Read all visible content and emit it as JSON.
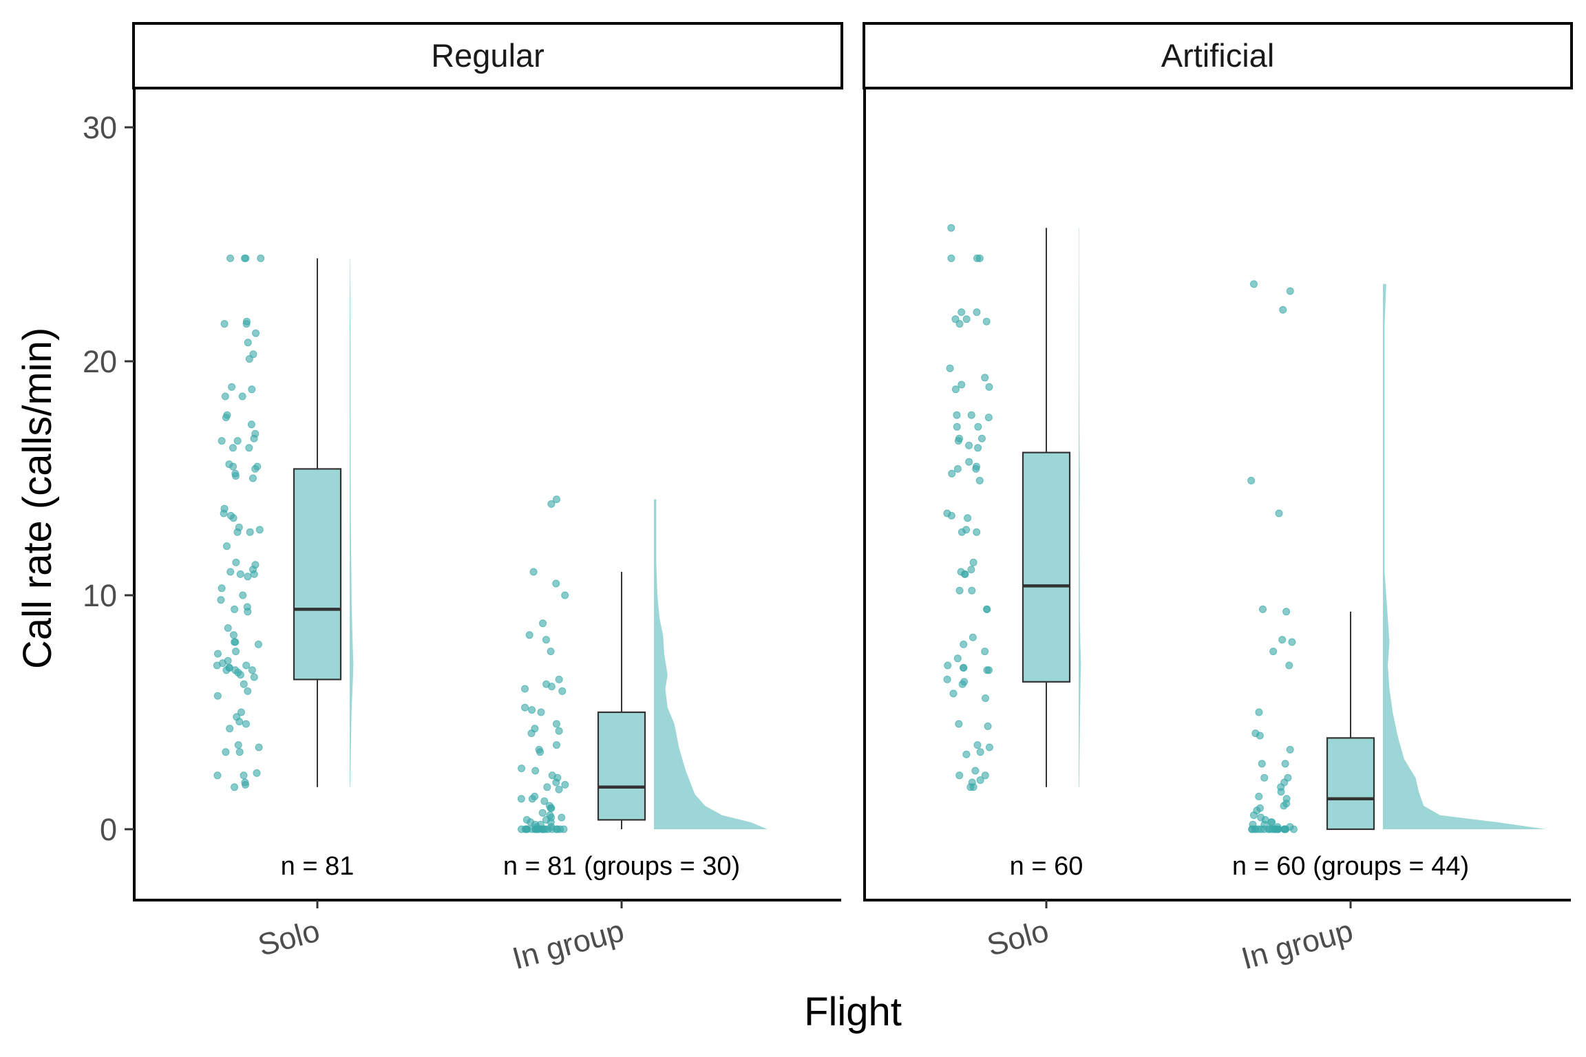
{
  "colors": {
    "fill": "#9dd6d6",
    "point": "#3aa9a9",
    "line": "#333333",
    "panel_border": "#000000"
  },
  "chart_data": {
    "type": "raincloud",
    "xlabel": "Flight",
    "ylabel": "Call rate (calls/min)",
    "ylim": [
      -3,
      31.5
    ],
    "yticks": [
      0,
      10,
      20,
      30
    ],
    "categories": [
      "Solo",
      "In group"
    ],
    "grid": false,
    "panels": [
      {
        "name": "Regular",
        "groups": [
          {
            "category": "Solo",
            "label": "n = 81",
            "box": {
              "min": 1.8,
              "q1": 6.4,
              "median": 9.4,
              "q3": 15.4,
              "max": 24.4
            },
            "density": [
              [
                1.8,
                0.03
              ],
              [
                3,
                0.06
              ],
              [
                5,
                0.11
              ],
              [
                6.5,
                0.2
              ],
              [
                7,
                0.22
              ],
              [
                8,
                0.18
              ],
              [
                9.5,
                0.12
              ],
              [
                11,
                0.1
              ],
              [
                13,
                0.07
              ],
              [
                15,
                0.06
              ],
              [
                16.5,
                0.06
              ],
              [
                18,
                0.05
              ],
              [
                19.5,
                0.05
              ],
              [
                21,
                0.05
              ],
              [
                22.5,
                0.04
              ],
              [
                24.4,
                0.02
              ]
            ],
            "points": [
              24.4,
              24.4,
              24.4,
              24.4,
              21.7,
              21.6,
              21.6,
              21.2,
              20.8,
              20.3,
              20.1,
              18.9,
              18.8,
              18.5,
              18.5,
              17.7,
              17.6,
              17.3,
              16.9,
              16.7,
              16.6,
              16.6,
              16.3,
              16.3,
              15.6,
              15.5,
              15.5,
              15.4,
              15.2,
              15.1,
              15,
              13.7,
              13.5,
              13.4,
              13.3,
              12.9,
              12.8,
              12.7,
              12.7,
              12.1,
              11.4,
              11.3,
              11.1,
              11,
              10.9,
              10.9,
              10.8,
              10.3,
              10,
              9.8,
              9.5,
              9.4,
              9.3,
              8.6,
              8.3,
              8,
              8,
              7.9,
              7.6,
              7.5,
              7.2,
              7.1,
              7,
              7,
              6.9,
              6.9,
              6.8,
              6.8,
              6.8,
              6.7,
              6.6,
              6.5,
              6.2,
              5.9,
              5.7,
              5,
              4.8,
              4.6,
              4.5,
              4.3,
              3.6,
              3.5,
              3.3,
              3.3,
              2.4,
              2.3,
              2.3,
              2,
              1.9,
              1.8
            ]
          },
          {
            "category": "In group",
            "label": "n = 81 (groups = 30)",
            "box": {
              "min": 0,
              "q1": 0.4,
              "median": 1.8,
              "q3": 5,
              "max": 11
            },
            "density": [
              [
                0,
                1
              ],
              [
                0.3,
                0.85
              ],
              [
                0.6,
                0.6
              ],
              [
                1,
                0.45
              ],
              [
                1.5,
                0.36
              ],
              [
                2.5,
                0.28
              ],
              [
                3.5,
                0.22
              ],
              [
                4.5,
                0.18
              ],
              [
                5.2,
                0.12
              ],
              [
                6,
                0.1
              ],
              [
                6.6,
                0.12
              ],
              [
                7.5,
                0.09
              ],
              [
                8.3,
                0.08
              ],
              [
                9,
                0.05
              ],
              [
                10,
                0.03
              ],
              [
                11.5,
                0.02
              ],
              [
                12.5,
                0.02
              ],
              [
                13.5,
                0.02
              ],
              [
                14.1,
                0.02
              ]
            ],
            "points": [
              14.1,
              13.9,
              11,
              10.5,
              10,
              8.8,
              8.3,
              8.1,
              7.6,
              6.4,
              6.2,
              6.1,
              6,
              5.9,
              5.2,
              5.1,
              5,
              4.5,
              4.3,
              4.2,
              4.1,
              3.6,
              3.4,
              3.3,
              2.6,
              2.5,
              2.3,
              2.2,
              2,
              1.9,
              1.8,
              1.7,
              1.4,
              1.3,
              1.3,
              1.2,
              1,
              0.9,
              0.9,
              0.7,
              0.6,
              0.5,
              0.5,
              0.4,
              0.4,
              0.3,
              0.3,
              0.2,
              0.2,
              0.1,
              0.1,
              0,
              0,
              0,
              0,
              0,
              0,
              0,
              0,
              0,
              0,
              0,
              0,
              0,
              0,
              0,
              0,
              0,
              0,
              0,
              0,
              0
            ]
          }
        ]
      },
      {
        "name": "Artificial",
        "groups": [
          {
            "category": "Solo",
            "label": "n = 60",
            "box": {
              "min": 1.8,
              "q1": 6.3,
              "median": 10.4,
              "q3": 16.1,
              "max": 25.7
            },
            "density": [
              [
                1.8,
                0.03
              ],
              [
                3,
                0.05
              ],
              [
                5,
                0.08
              ],
              [
                6.5,
                0.12
              ],
              [
                7,
                0.14
              ],
              [
                8,
                0.1
              ],
              [
                9,
                0.07
              ],
              [
                10.5,
                0.07
              ],
              [
                12,
                0.06
              ],
              [
                13.5,
                0.06
              ],
              [
                15,
                0.07
              ],
              [
                16.5,
                0.05
              ],
              [
                18,
                0.04
              ],
              [
                20,
                0.03
              ],
              [
                22,
                0.03
              ],
              [
                24,
                0.02
              ],
              [
                25.7,
                0.02
              ]
            ],
            "points": [
              25.7,
              24.4,
              24.4,
              24.4,
              22.1,
              22.1,
              21.8,
              21.8,
              21.7,
              21.6,
              19.7,
              19.3,
              19,
              18.9,
              18.8,
              17.7,
              17.7,
              17.6,
              17.2,
              17.2,
              16.7,
              16.7,
              16.6,
              16.4,
              16.3,
              15.7,
              15.5,
              15.4,
              15.4,
              15.2,
              14.9,
              13.5,
              13.4,
              13.3,
              12.8,
              12.7,
              12.7,
              11.4,
              11.1,
              11,
              10.9,
              10.9,
              10.2,
              10.2,
              9.4,
              9.4,
              8.2,
              7.9,
              7.6,
              7.3,
              7,
              6.9,
              6.9,
              6.8,
              6.8,
              6.4,
              6.3,
              6.2,
              5.8,
              5.6,
              4.5,
              4.4,
              3.6,
              3.5,
              3.3,
              3.2,
              2.5,
              2.3,
              2.3,
              2.1,
              2,
              1.8,
              1.8
            ]
          },
          {
            "category": "In group",
            "label": "n = 60 (groups = 44)",
            "box": {
              "min": 0,
              "q1": 0,
              "median": 1.3,
              "q3": 3.9,
              "max": 9.3
            },
            "density": [
              [
                0,
                1
              ],
              [
                0.3,
                0.7
              ],
              [
                0.6,
                0.35
              ],
              [
                1,
                0.25
              ],
              [
                1.6,
                0.22
              ],
              [
                2.2,
                0.2
              ],
              [
                3,
                0.13
              ],
              [
                4,
                0.09
              ],
              [
                5,
                0.06
              ],
              [
                6,
                0.04
              ],
              [
                7,
                0.03
              ],
              [
                8,
                0.04
              ],
              [
                9,
                0.03
              ],
              [
                10,
                0.02
              ],
              [
                11,
                0.01
              ],
              [
                12,
                0.01
              ],
              [
                13.5,
                0.01
              ],
              [
                15,
                0.01
              ],
              [
                16,
                0.01
              ],
              [
                18,
                0.01
              ],
              [
                21.5,
                0.01
              ],
              [
                23.3,
                0.02
              ]
            ],
            "points": [
              23.3,
              23,
              22.2,
              14.9,
              13.5,
              9.4,
              9.3,
              8.1,
              8,
              7.6,
              7,
              5,
              4.1,
              4,
              3.4,
              2.8,
              2.8,
              2.2,
              2.2,
              2,
              1.8,
              1.6,
              1.4,
              1.3,
              1.1,
              1,
              0.9,
              0.8,
              0.6,
              0.5,
              0.4,
              0.3,
              0.3,
              0.2,
              0.2,
              0.1,
              0.1,
              0,
              0,
              0,
              0,
              0,
              0,
              0,
              0,
              0,
              0,
              0,
              0,
              0,
              0,
              0,
              0,
              0,
              0,
              0,
              0,
              0
            ]
          }
        ]
      }
    ]
  }
}
